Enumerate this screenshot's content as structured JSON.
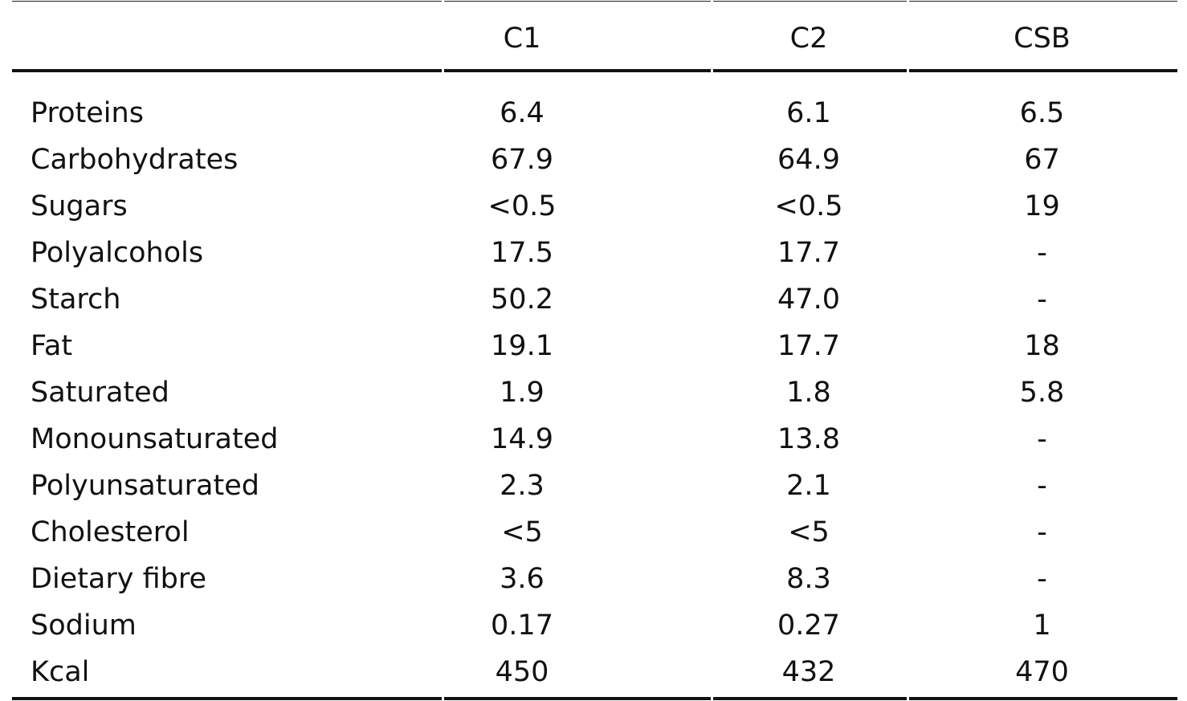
{
  "table": {
    "headers": [
      "",
      "C1",
      "C2",
      "CSB"
    ],
    "rows": [
      {
        "label": "Proteins",
        "c1": "6.4",
        "c2": "6.1",
        "csb": "6.5"
      },
      {
        "label": "Carbohydrates",
        "c1": "67.9",
        "c2": "64.9",
        "csb": "67"
      },
      {
        "label": "Sugars",
        "c1": "<0.5",
        "c2": "<0.5",
        "csb": "19"
      },
      {
        "label": "Polyalcohols",
        "c1": "17.5",
        "c2": "17.7",
        "csb": "-"
      },
      {
        "label": "Starch",
        "c1": "50.2",
        "c2": "47.0",
        "csb": "-"
      },
      {
        "label": "Fat",
        "c1": "19.1",
        "c2": "17.7",
        "csb": "18"
      },
      {
        "label": "Saturated",
        "c1": "1.9",
        "c2": "1.8",
        "csb": "5.8"
      },
      {
        "label": "Monounsaturated",
        "c1": "14.9",
        "c2": "13.8",
        "csb": "-"
      },
      {
        "label": "Polyunsaturated",
        "c1": "2.3",
        "c2": "2.1",
        "csb": "-"
      },
      {
        "label": "Cholesterol",
        "c1": "<5",
        "c2": "<5",
        "csb": "-"
      },
      {
        "label": "Dietary fibre",
        "c1": "3.6",
        "c2": "8.3",
        "csb": "-"
      },
      {
        "label": "Sodium",
        "c1": "0.17",
        "c2": "0.27",
        "csb": "1"
      },
      {
        "label": "Kcal",
        "c1": "450",
        "c2": "432",
        "csb": "470"
      }
    ]
  }
}
